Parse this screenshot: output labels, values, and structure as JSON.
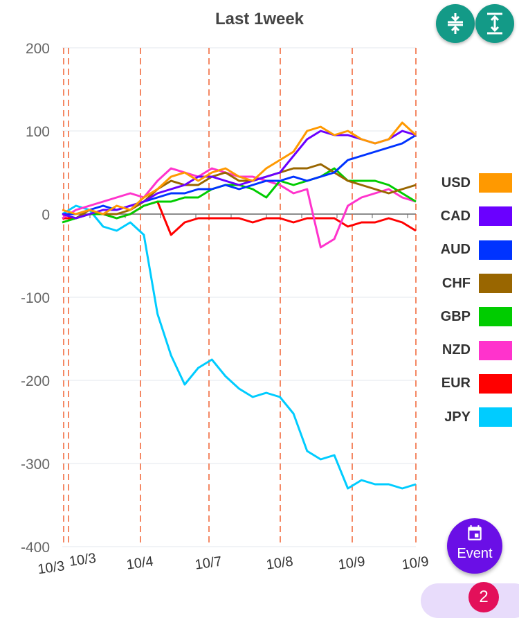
{
  "chart_data": {
    "type": "line",
    "title": "Last 1week",
    "ylim": [
      -400,
      200
    ],
    "yticks": [
      200,
      100,
      0,
      -100,
      -200,
      -300,
      -400
    ],
    "xticks": [
      "10/3",
      "10/3",
      "10/4",
      "10/7",
      "10/8",
      "10/9",
      "10/9"
    ],
    "grid": true,
    "legend_placement": "right",
    "series": [
      {
        "name": "USD",
        "color": "#ff9900",
        "values": [
          5,
          0,
          5,
          0,
          10,
          5,
          20,
          30,
          45,
          50,
          40,
          50,
          55,
          45,
          40,
          55,
          65,
          75,
          100,
          105,
          95,
          100,
          90,
          85,
          90,
          110,
          95
        ]
      },
      {
        "name": "CAD",
        "color": "#6a00ff",
        "values": [
          0,
          -5,
          0,
          5,
          5,
          10,
          15,
          25,
          30,
          35,
          45,
          45,
          40,
          35,
          40,
          45,
          50,
          70,
          90,
          100,
          95,
          95,
          90,
          85,
          90,
          100,
          95
        ]
      },
      {
        "name": "AUD",
        "color": "#0033ff",
        "values": [
          0,
          0,
          5,
          10,
          5,
          10,
          15,
          20,
          25,
          25,
          30,
          30,
          35,
          30,
          35,
          40,
          40,
          45,
          40,
          45,
          50,
          65,
          70,
          75,
          80,
          85,
          95
        ]
      },
      {
        "name": "CHF",
        "color": "#996600",
        "values": [
          0,
          -5,
          5,
          0,
          0,
          5,
          15,
          30,
          40,
          35,
          35,
          45,
          50,
          40,
          40,
          45,
          50,
          55,
          55,
          60,
          50,
          40,
          35,
          30,
          25,
          30,
          35
        ]
      },
      {
        "name": "GBP",
        "color": "#00cc00",
        "values": [
          -10,
          -5,
          0,
          0,
          -5,
          0,
          10,
          15,
          15,
          20,
          20,
          30,
          35,
          35,
          30,
          20,
          40,
          35,
          40,
          45,
          55,
          40,
          40,
          40,
          35,
          25,
          15
        ]
      },
      {
        "name": "NZD",
        "color": "#ff33cc",
        "values": [
          -5,
          5,
          10,
          15,
          20,
          25,
          20,
          40,
          55,
          50,
          45,
          55,
          50,
          45,
          45,
          40,
          35,
          25,
          30,
          -40,
          -30,
          10,
          20,
          25,
          30,
          20,
          15
        ]
      },
      {
        "name": "EUR",
        "color": "#ff0000",
        "values": [
          -5,
          -5,
          0,
          0,
          -5,
          0,
          10,
          15,
          -25,
          -10,
          -5,
          -5,
          -5,
          -5,
          -10,
          -5,
          -5,
          -10,
          -5,
          -5,
          -5,
          -15,
          -10,
          -10,
          -5,
          -10,
          -20
        ]
      },
      {
        "name": "JPY",
        "color": "#00ccff",
        "values": [
          0,
          10,
          5,
          -15,
          -20,
          -10,
          -25,
          -120,
          -170,
          -205,
          -185,
          -175,
          -195,
          -210,
          -220,
          -215,
          -220,
          -240,
          -285,
          -295,
          -290,
          -330,
          -320,
          -325,
          -325,
          -330,
          -325
        ]
      }
    ]
  },
  "buttons": {
    "collapse": "collapse-icon",
    "expand": "expand-icon",
    "event_label": "Event",
    "badge": "2"
  }
}
